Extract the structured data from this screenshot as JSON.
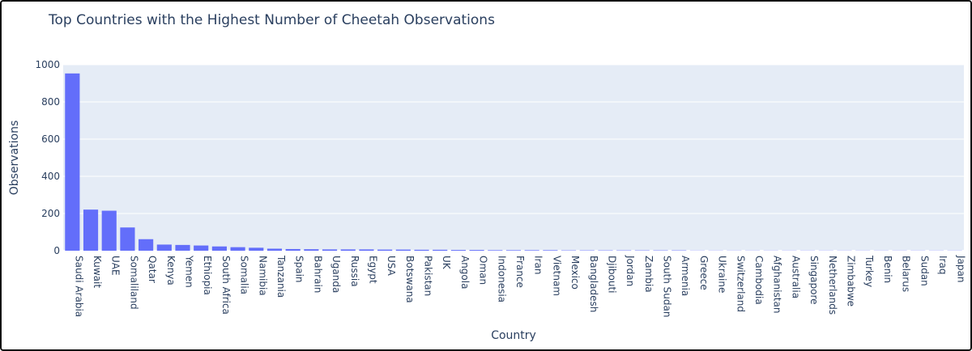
{
  "chart_data": {
    "type": "bar",
    "title": "Top Countries with the Highest Number of Cheetah Observations",
    "xlabel": "Country",
    "ylabel": "Observations",
    "ylim": [
      0,
      1000
    ],
    "yticks": [
      0,
      200,
      400,
      600,
      800,
      1000
    ],
    "grid": true,
    "colors": {
      "bar": "#636efa",
      "plot_bg": "#e5ecf6",
      "grid": "#ffffff",
      "text": "#2a3f5f"
    },
    "categories": [
      "Saudi Arabia",
      "Kuwait",
      "UAE",
      "Somaliland",
      "Qatar",
      "Kenya",
      "Yemen",
      "Ethiopia",
      "South Africa",
      "Somalia",
      "Namibia",
      "Tanzania",
      "Spain",
      "Bahrain",
      "Uganda",
      "Russia",
      "Egypt",
      "USA",
      "Botswana",
      "Pakistan",
      "UK",
      "Angola",
      "Oman",
      "Indonesia",
      "France",
      "Iran",
      "Vietnam",
      "Mexico",
      "Bangladesh",
      "Djibouti",
      "Jordan",
      "Zambia",
      "South Sudan",
      "Armenia",
      "Greece",
      "Ukraine",
      "Switzerland",
      "Cambodia",
      "Afghanistan",
      "Australia",
      "Singapore",
      "Netherlands",
      "Zimbabwe",
      "Turkey",
      "Benin",
      "Belarus",
      "Sudan",
      "Iraq",
      "Japan"
    ],
    "values": [
      953,
      221,
      215,
      125,
      62,
      33,
      31,
      28,
      23,
      19,
      16,
      11,
      9,
      8,
      7,
      7,
      7,
      6,
      6,
      5,
      5,
      4,
      4,
      3,
      3,
      3,
      3,
      2,
      2,
      2,
      2,
      2,
      2,
      2,
      1,
      1,
      1,
      1,
      1,
      1,
      1,
      1,
      1,
      1,
      1,
      1,
      1,
      1,
      1
    ]
  }
}
